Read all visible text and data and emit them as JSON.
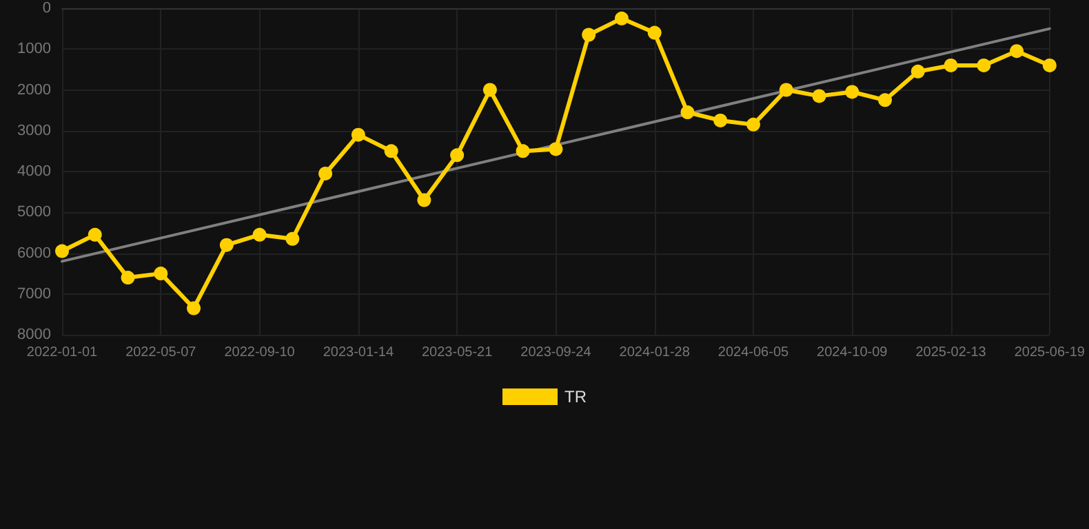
{
  "chart_data": {
    "type": "line",
    "categories": [
      "2022-01-01",
      null,
      null,
      "2022-05-07",
      null,
      null,
      "2022-09-10",
      null,
      null,
      "2023-01-14",
      null,
      null,
      "2023-05-21",
      null,
      null,
      "2023-09-24",
      null,
      null,
      "2024-01-28",
      null,
      null,
      "2024-06-05",
      null,
      null,
      "2024-10-09",
      null,
      null,
      "2025-02-13",
      null,
      null,
      "2025-06-19"
    ],
    "series": [
      {
        "name": "TR",
        "color": "#ffd000",
        "values": [
          5950,
          5550,
          6600,
          6500,
          7350,
          5800,
          5550,
          5650,
          4050,
          3100,
          3500,
          4700,
          3600,
          2000,
          3500,
          3450,
          650,
          250,
          600,
          2550,
          2750,
          2850,
          2000,
          2150,
          2050,
          2250,
          1550,
          1400,
          1400,
          1050,
          1400
        ]
      },
      {
        "type": "line",
        "color": "#808080",
        "values": [
          6200,
          null,
          null,
          null,
          null,
          null,
          null,
          null,
          null,
          null,
          null,
          null,
          null,
          null,
          null,
          null,
          null,
          null,
          null,
          null,
          null,
          null,
          null,
          null,
          null,
          null,
          null,
          null,
          null,
          null,
          500
        ],
        "marker": "none"
      }
    ],
    "ylim": [
      8000,
      0
    ],
    "yticks": [
      0,
      1000,
      2000,
      3000,
      4000,
      5000,
      6000,
      7000,
      8000
    ],
    "grid": true,
    "legend": "bottom",
    "marker": "circle",
    "line_style": "solid"
  }
}
